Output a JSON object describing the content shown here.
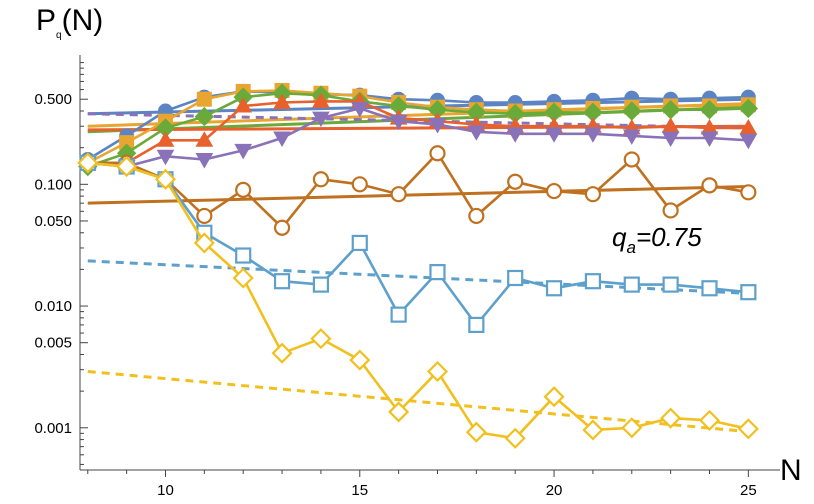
{
  "chart_data": {
    "type": "line",
    "title": "",
    "ylabel": {
      "main": "P",
      "sub": "q",
      "tail": "(N)"
    },
    "xlabel": "N",
    "annotation": {
      "main": "q",
      "sub": "a",
      "tail": "=0.75"
    },
    "yscale": "log",
    "xlim": [
      7.8,
      25.3
    ],
    "ylim": [
      0.00045,
      1.05
    ],
    "x_ticks": [
      10,
      15,
      20,
      25
    ],
    "x_tick_labels": [
      "10",
      "15",
      "20",
      "25"
    ],
    "y_ticks": [
      0.5,
      0.1,
      0.05,
      0.01,
      0.005,
      0.001
    ],
    "y_tick_labels": [
      "0.500",
      "0.100",
      "0.050",
      "0.010",
      "0.005",
      "0.001"
    ],
    "x": [
      8,
      9,
      10,
      11,
      12,
      13,
      14,
      15,
      16,
      17,
      18,
      19,
      20,
      21,
      22,
      23,
      24,
      25
    ],
    "series": [
      {
        "name": "blue-filled-circle",
        "color": "#5b84c4",
        "marker": "circle",
        "filled": true,
        "values": [
          0.16,
          0.25,
          0.4,
          0.52,
          0.58,
          0.57,
          0.55,
          0.54,
          0.5,
          0.49,
          0.47,
          0.47,
          0.48,
          0.49,
          0.51,
          0.5,
          0.51,
          0.52
        ]
      },
      {
        "name": "orange-filled-square",
        "color": "#e8a630",
        "marker": "square",
        "filled": true,
        "values": [
          0.15,
          0.22,
          0.33,
          0.5,
          0.58,
          0.59,
          0.56,
          0.53,
          0.47,
          0.43,
          0.41,
          0.4,
          0.41,
          0.42,
          0.43,
          0.44,
          0.44,
          0.45
        ]
      },
      {
        "name": "green-filled-diamond",
        "color": "#6aaa3a",
        "marker": "diamond",
        "filled": true,
        "values": [
          0.14,
          0.18,
          0.29,
          0.36,
          0.52,
          0.56,
          0.54,
          0.48,
          0.44,
          0.41,
          0.39,
          0.38,
          0.39,
          0.39,
          0.4,
          0.41,
          0.41,
          0.42
        ]
      },
      {
        "name": "red-filled-triangle-up",
        "color": "#e8612c",
        "marker": "triangle-up",
        "filled": true,
        "values": [
          0.15,
          0.15,
          0.23,
          0.23,
          0.44,
          0.47,
          0.48,
          0.48,
          0.35,
          0.33,
          0.31,
          0.3,
          0.3,
          0.3,
          0.29,
          0.3,
          0.29,
          0.29
        ]
      },
      {
        "name": "purple-filled-triangle-down",
        "color": "#8a72b8",
        "marker": "triangle-down",
        "filled": true,
        "values": [
          0.15,
          0.14,
          0.17,
          0.16,
          0.19,
          0.24,
          0.35,
          0.42,
          0.33,
          0.31,
          0.27,
          0.26,
          0.26,
          0.26,
          0.25,
          0.24,
          0.24,
          0.23
        ]
      },
      {
        "name": "brown-open-circle",
        "color": "#c0711f",
        "marker": "circle",
        "filled": false,
        "values": [
          0.15,
          0.15,
          0.11,
          0.055,
          0.09,
          0.044,
          0.11,
          0.1,
          0.083,
          0.18,
          0.055,
          0.105,
          0.088,
          0.083,
          0.16,
          0.061,
          0.098,
          0.086
        ]
      },
      {
        "name": "lightblue-open-square",
        "color": "#5ea0cc",
        "marker": "square",
        "filled": false,
        "values": [
          0.15,
          0.14,
          0.11,
          0.04,
          0.026,
          0.016,
          0.015,
          0.033,
          0.0085,
          0.019,
          0.007,
          0.017,
          0.014,
          0.016,
          0.015,
          0.015,
          0.014,
          0.013
        ]
      },
      {
        "name": "yellow-open-diamond",
        "color": "#f2c01e",
        "marker": "diamond",
        "filled": false,
        "values": [
          0.15,
          0.14,
          0.11,
          0.033,
          0.017,
          0.0041,
          0.0054,
          0.0036,
          0.00135,
          0.0029,
          0.00092,
          0.00082,
          0.0018,
          0.00096,
          0.001,
          0.0012,
          0.00115,
          0.00098
        ]
      }
    ],
    "fits": [
      {
        "name": "blue-fit",
        "color": "#5b84c4",
        "dashed": false,
        "from": [
          8,
          0.38
        ],
        "to": [
          25,
          0.5
        ]
      },
      {
        "name": "orange-fit",
        "color": "#e8a630",
        "dashed": false,
        "from": [
          8,
          0.3
        ],
        "to": [
          25,
          0.46
        ]
      },
      {
        "name": "green-fit",
        "color": "#6aaa3a",
        "dashed": false,
        "from": [
          8,
          0.27
        ],
        "to": [
          25,
          0.43
        ]
      },
      {
        "name": "red-fit",
        "color": "#e8612c",
        "dashed": false,
        "from": [
          8,
          0.28
        ],
        "to": [
          25,
          0.3
        ]
      },
      {
        "name": "purple-fit",
        "color": "#8a72b8",
        "dashed": true,
        "from": [
          8,
          0.38
        ],
        "to": [
          25,
          0.29
        ]
      },
      {
        "name": "brown-fit",
        "color": "#c0711f",
        "dashed": false,
        "from": [
          8,
          0.07
        ],
        "to": [
          25,
          0.096
        ]
      },
      {
        "name": "lightblue-fit",
        "color": "#5ea0cc",
        "dashed": true,
        "from": [
          8,
          0.0235
        ],
        "to": [
          25,
          0.0127
        ]
      },
      {
        "name": "yellow-fit",
        "color": "#f2c01e",
        "dashed": true,
        "from": [
          8,
          0.0029
        ],
        "to": [
          25,
          0.00093
        ]
      }
    ]
  }
}
